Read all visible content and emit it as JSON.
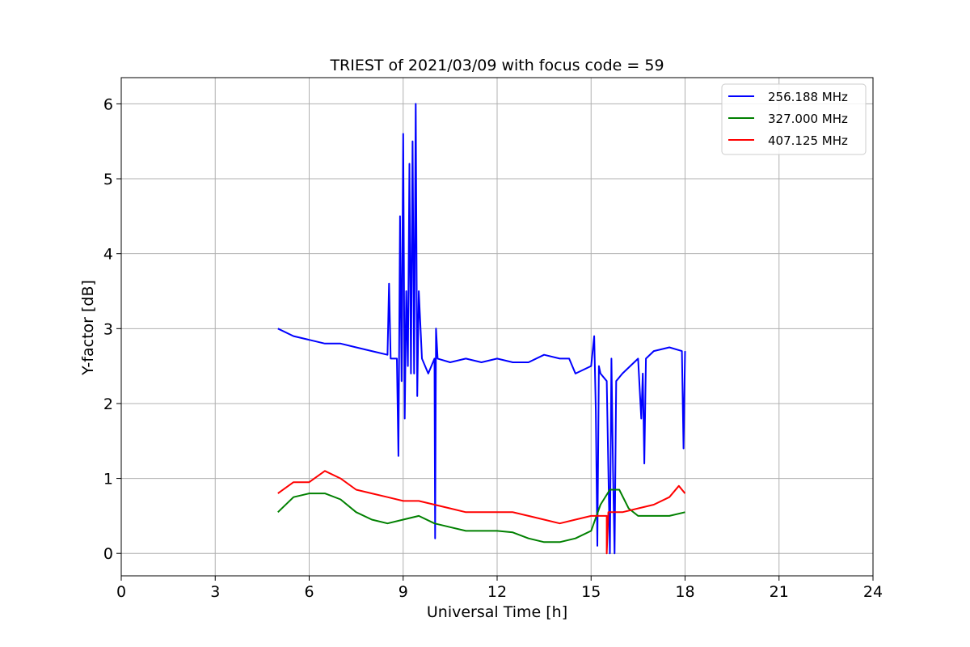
{
  "chart_data": {
    "type": "line",
    "title": "TRIEST of 2021/03/09 with focus code = 59",
    "xlabel": "Universal Time [h]",
    "ylabel": "Y-factor [dB]",
    "xlim": [
      0,
      24
    ],
    "ylim": [
      -0.3,
      6.35
    ],
    "xticks": [
      0,
      3,
      6,
      9,
      12,
      15,
      18,
      21,
      24
    ],
    "yticks": [
      0,
      1,
      2,
      3,
      4,
      5,
      6
    ],
    "grid": true,
    "legend_position": "top-right",
    "series": [
      {
        "name": "256.188 MHz",
        "color": "#0000ff",
        "x": [
          5.0,
          5.5,
          6.0,
          6.5,
          7.0,
          7.5,
          8.0,
          8.5,
          8.55,
          8.6,
          8.8,
          8.85,
          8.9,
          8.95,
          9.0,
          9.05,
          9.1,
          9.15,
          9.2,
          9.25,
          9.3,
          9.35,
          9.4,
          9.45,
          9.5,
          9.6,
          9.8,
          10.0,
          10.02,
          10.05,
          10.1,
          10.5,
          11.0,
          11.5,
          12.0,
          12.5,
          13.0,
          13.5,
          14.0,
          14.3,
          14.5,
          15.0,
          15.1,
          15.15,
          15.2,
          15.25,
          15.3,
          15.5,
          15.6,
          15.65,
          15.7,
          15.75,
          15.8,
          16.0,
          16.5,
          16.6,
          16.65,
          16.7,
          16.75,
          17.0,
          17.5,
          17.9,
          17.95,
          18.0
        ],
        "y": [
          3.0,
          2.9,
          2.85,
          2.8,
          2.8,
          2.75,
          2.7,
          2.65,
          3.6,
          2.6,
          2.6,
          1.3,
          4.5,
          2.3,
          5.6,
          1.8,
          3.5,
          2.5,
          5.2,
          2.4,
          5.5,
          2.4,
          6.0,
          2.1,
          3.5,
          2.6,
          2.4,
          2.6,
          0.2,
          3.0,
          2.6,
          2.55,
          2.6,
          2.55,
          2.6,
          2.55,
          2.55,
          2.65,
          2.6,
          2.6,
          2.4,
          2.5,
          2.9,
          1.9,
          0.1,
          2.5,
          2.4,
          2.3,
          0.0,
          2.6,
          1.1,
          0.0,
          2.3,
          2.4,
          2.6,
          1.8,
          2.4,
          1.2,
          2.6,
          2.7,
          2.75,
          2.7,
          1.4,
          2.7
        ]
      },
      {
        "name": "327.000 MHz",
        "color": "#008000",
        "x": [
          5.0,
          5.5,
          6.0,
          6.5,
          7.0,
          7.5,
          8.0,
          8.5,
          9.0,
          9.5,
          10.0,
          10.5,
          11.0,
          11.5,
          12.0,
          12.5,
          13.0,
          13.5,
          14.0,
          14.5,
          15.0,
          15.3,
          15.6,
          15.9,
          16.2,
          16.5,
          17.0,
          17.5,
          18.0
        ],
        "y": [
          0.55,
          0.75,
          0.8,
          0.8,
          0.72,
          0.55,
          0.45,
          0.4,
          0.45,
          0.5,
          0.4,
          0.35,
          0.3,
          0.3,
          0.3,
          0.28,
          0.2,
          0.15,
          0.15,
          0.2,
          0.3,
          0.65,
          0.85,
          0.85,
          0.6,
          0.5,
          0.5,
          0.5,
          0.55
        ]
      },
      {
        "name": "407.125 MHz",
        "color": "#ff0000",
        "x": [
          5.0,
          5.5,
          6.0,
          6.5,
          7.0,
          7.5,
          8.0,
          8.5,
          9.0,
          9.5,
          10.0,
          10.5,
          11.0,
          11.5,
          12.0,
          12.5,
          13.0,
          13.5,
          14.0,
          14.5,
          15.0,
          15.5,
          15.5,
          15.55,
          16.0,
          16.5,
          17.0,
          17.5,
          17.8,
          18.0
        ],
        "y": [
          0.8,
          0.95,
          0.95,
          1.1,
          1.0,
          0.85,
          0.8,
          0.75,
          0.7,
          0.7,
          0.65,
          0.6,
          0.55,
          0.55,
          0.55,
          0.55,
          0.5,
          0.45,
          0.4,
          0.45,
          0.5,
          0.5,
          0.0,
          0.55,
          0.55,
          0.6,
          0.65,
          0.75,
          0.9,
          0.8
        ]
      }
    ]
  }
}
